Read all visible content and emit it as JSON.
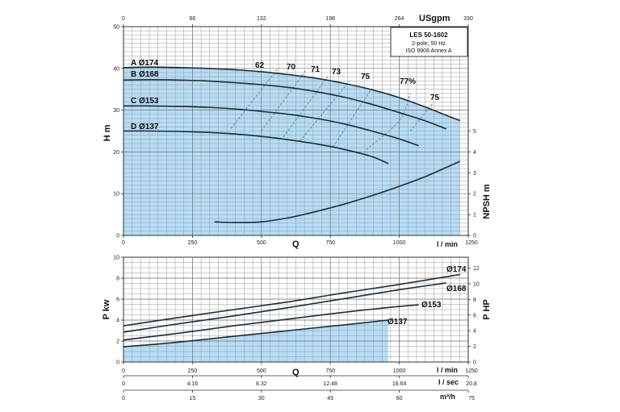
{
  "chart_data": [
    {
      "type": "line",
      "panel": "head",
      "info_box": [
        "LES 50-1602",
        "2-pole, 50 Hz",
        "ISO 9906 Annex A"
      ],
      "xlabel": "Q",
      "x_unit": "l / min",
      "ylabel": "H m",
      "y2label": "NPSH m",
      "top_axis_unit": "USgpm",
      "xlim": [
        0,
        1250
      ],
      "ylim": [
        0,
        50
      ],
      "y2lim": [
        0,
        10
      ],
      "x_ticks": [
        0,
        250,
        500,
        750,
        1000,
        1250
      ],
      "y_ticks": [
        0,
        10,
        20,
        30,
        40,
        50
      ],
      "y2_ticks": [
        0,
        1,
        2,
        3,
        4,
        5
      ],
      "top_ticks": [
        0,
        66,
        132,
        198,
        264,
        330
      ],
      "grid": true,
      "series": [
        {
          "name": "A Ø174",
          "label": "A Ø174",
          "x": [
            0,
            100,
            200,
            300,
            400,
            500,
            600,
            700,
            800,
            900,
            1000,
            1100,
            1180,
            1220
          ],
          "y": [
            40.2,
            40.3,
            40.2,
            40.0,
            39.7,
            39.2,
            38.5,
            37.6,
            36.4,
            34.9,
            33.0,
            30.6,
            28.5,
            27.5
          ]
        },
        {
          "name": "B Ø168",
          "label": "B Ø168",
          "x": [
            0,
            100,
            200,
            300,
            400,
            500,
            600,
            700,
            800,
            900,
            1000,
            1100,
            1170
          ],
          "y": [
            37.2,
            37.3,
            37.2,
            37.0,
            36.6,
            36.1,
            35.4,
            34.4,
            33.1,
            31.4,
            29.4,
            27.3,
            25.5
          ]
        },
        {
          "name": "C Ø153",
          "label": "C Ø153",
          "x": [
            0,
            100,
            200,
            300,
            400,
            500,
            600,
            700,
            800,
            900,
            1000,
            1070
          ],
          "y": [
            31.0,
            31.0,
            30.9,
            30.7,
            30.3,
            29.7,
            29.0,
            28.0,
            26.7,
            25.0,
            23.1,
            21.5
          ]
        },
        {
          "name": "D Ø137",
          "label": "D Ø137",
          "x": [
            0,
            100,
            200,
            300,
            400,
            500,
            600,
            700,
            800,
            900,
            960
          ],
          "y": [
            25.0,
            25.0,
            24.9,
            24.7,
            24.3,
            23.7,
            22.9,
            21.9,
            20.6,
            18.9,
            17.2
          ]
        },
        {
          "name": "NPSH",
          "axis": "y2",
          "x": [
            330,
            400,
            500,
            600,
            700,
            800,
            900,
            1000,
            1100,
            1220
          ],
          "y": [
            0.65,
            0.62,
            0.65,
            0.85,
            1.15,
            1.5,
            1.9,
            2.35,
            2.85,
            3.55
          ]
        }
      ],
      "efficiency_labels": [
        "62",
        "70",
        "71",
        "73",
        "75",
        "77%",
        "75"
      ],
      "efficiency_contours": [
        {
          "x": [
            390,
            560
          ],
          "y": [
            25.6,
            40.0
          ]
        },
        {
          "x": [
            500,
            660
          ],
          "y": [
            25.0,
            39.4
          ]
        },
        {
          "x": [
            580,
            740
          ],
          "y": [
            23.6,
            38.0
          ]
        },
        {
          "x": [
            640,
            820
          ],
          "y": [
            22.6,
            37.0
          ]
        },
        {
          "x": [
            760,
            900
          ],
          "y": [
            21.2,
            35.2
          ]
        },
        {
          "x": [
            880,
            1000,
            1040
          ],
          "y": [
            20.5,
            27.5,
            34.0
          ]
        },
        {
          "x": [
            1040,
            1120
          ],
          "y": [
            25.0,
            31.5
          ]
        }
      ],
      "shaded_region": "under A Ø174 and above 0"
    },
    {
      "type": "line",
      "panel": "power",
      "ylabel": "P kw",
      "y2label": "P HP",
      "xlim": [
        0,
        1250
      ],
      "ylim": [
        0,
        10
      ],
      "y2lim": [
        0,
        13.4
      ],
      "y_ticks": [
        0,
        2,
        4,
        6,
        8,
        10
      ],
      "y2_ticks": [
        0,
        2,
        4,
        6,
        8,
        10,
        12
      ],
      "grid": true,
      "series": [
        {
          "name": "Ø174",
          "label": "Ø174",
          "x": [
            0,
            200,
            400,
            600,
            800,
            1000,
            1220
          ],
          "y": [
            3.45,
            4.25,
            5.0,
            5.75,
            6.6,
            7.4,
            8.35
          ]
        },
        {
          "name": "Ø168",
          "label": "Ø168",
          "x": [
            0,
            200,
            400,
            600,
            800,
            1000,
            1170
          ],
          "y": [
            2.85,
            3.65,
            4.4,
            5.2,
            6.05,
            6.9,
            7.55
          ]
        },
        {
          "name": "Ø153",
          "label": "Ø153",
          "x": [
            0,
            200,
            400,
            600,
            800,
            1000,
            1070
          ],
          "y": [
            2.1,
            2.75,
            3.45,
            4.1,
            4.75,
            5.3,
            5.45
          ]
        },
        {
          "name": "Ø137",
          "label": "Ø137",
          "x": [
            0,
            200,
            400,
            600,
            800,
            960
          ],
          "y": [
            1.45,
            1.9,
            2.45,
            3.0,
            3.55,
            4.0
          ]
        }
      ]
    }
  ],
  "bottom_axes": {
    "q_label": "Q",
    "lmin": {
      "unit": "l / min",
      "ticks": [
        "0",
        "250",
        "500",
        "750",
        "1000",
        "1250"
      ]
    },
    "lsec": {
      "unit": "l / sec",
      "ticks": [
        "0",
        "4.16",
        "8.32",
        "12.48",
        "16.64",
        "20.8"
      ]
    },
    "m3h": {
      "unit": "m³/h",
      "ticks": [
        "0",
        "15",
        "30",
        "45",
        "60",
        "75"
      ]
    }
  },
  "colors": {
    "fill": "#b5dcf5",
    "grid": "#9a9a9a",
    "curve": "#1a2e3a"
  }
}
